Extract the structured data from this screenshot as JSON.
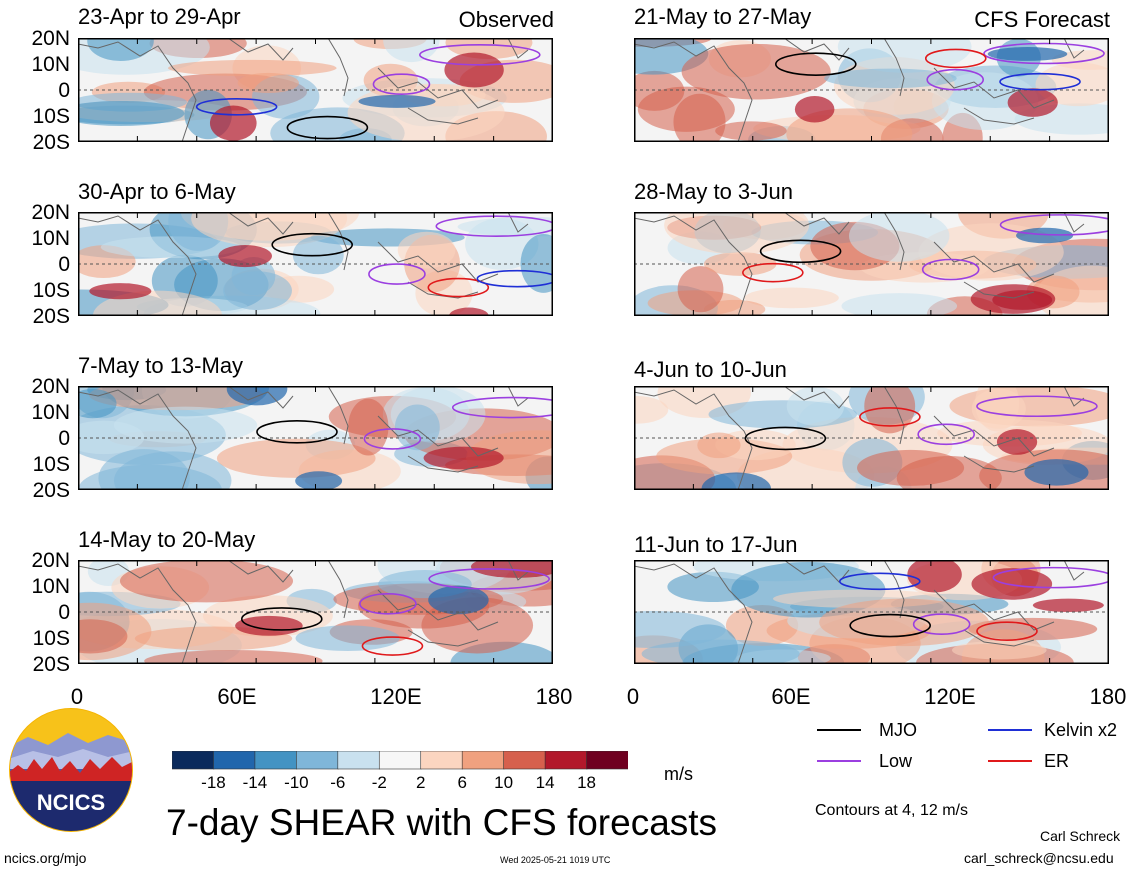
{
  "chart_data": {
    "type": "heatmap",
    "title": "7-day SHEAR with CFS forecasts",
    "units": "m/s",
    "x_ticks": [
      "0",
      "60E",
      "120E",
      "180"
    ],
    "y_ticks": [
      "20N",
      "10N",
      "0",
      "10S",
      "20S"
    ],
    "xlim": [
      0,
      180
    ],
    "ylim": [
      -20,
      20
    ],
    "colorbar": {
      "levels": [
        "-18",
        "-14",
        "-10",
        "-6",
        "-2",
        "2",
        "6",
        "10",
        "14",
        "18"
      ],
      "colors": [
        "#0b2a5c",
        "#2166ac",
        "#4393c3",
        "#7fb6d9",
        "#c9e1ef",
        "#f7f7f7",
        "#fbd5c0",
        "#f0a17f",
        "#d6604d",
        "#b2182b",
        "#6f0020"
      ]
    },
    "panels": [
      {
        "title": "23-Apr to 29-Apr",
        "tag": "Observed"
      },
      {
        "title": "21-May to 27-May",
        "tag": "CFS Forecast"
      },
      {
        "title": "30-Apr to 6-May",
        "tag": ""
      },
      {
        "title": "28-May to 3-Jun",
        "tag": ""
      },
      {
        "title": "7-May to 13-May",
        "tag": ""
      },
      {
        "title": "4-Jun to 10-Jun",
        "tag": ""
      },
      {
        "title": "14-May to 20-May",
        "tag": ""
      },
      {
        "title": "11-Jun to 17-Jun",
        "tag": ""
      }
    ],
    "legend": [
      {
        "label": "MJO",
        "color": "#000000"
      },
      {
        "label": "Kelvin x2",
        "color": "#1f2fd6"
      },
      {
        "label": "Low",
        "color": "#9b3fe0"
      },
      {
        "label": "ER",
        "color": "#e0191b"
      }
    ],
    "contour_note": "Contours at 4, 12 m/s"
  },
  "logo": {
    "text": "NCICS"
  },
  "footer": {
    "url": "ncics.org/mjo",
    "timestamp": "Wed 2025-05-21 1019 UTC",
    "author": "Carl Schreck",
    "email": "carl_schreck@ncsu.edu"
  }
}
